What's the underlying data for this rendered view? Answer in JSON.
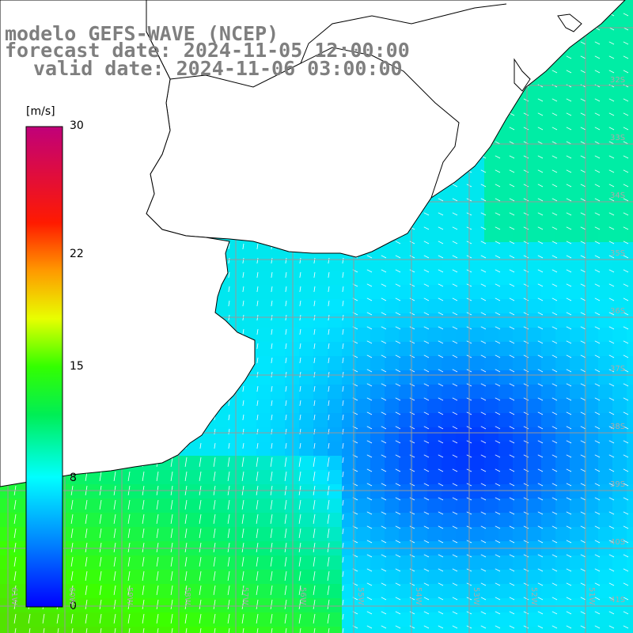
{
  "title": {
    "line1": "modelo GEFS-WAVE (NCEP)",
    "line2": "forecast date: 2024-11-05 12:00:00",
    "line3": "valid date: 2024-11-06 03:00:00"
  },
  "colorbar": {
    "unit": "[m/s]",
    "min": 0,
    "max": 30,
    "ticks": [
      {
        "label": "30",
        "value": 30
      },
      {
        "label": "22",
        "value": 22
      },
      {
        "label": "15",
        "value": 15
      },
      {
        "label": "8",
        "value": 8
      },
      {
        "label": "0",
        "value": 0
      }
    ],
    "colors": [
      "#0000ff",
      "#0080ff",
      "#00ffff",
      "#00ff00",
      "#ffff00",
      "#ff8000",
      "#ff0000",
      "#c0006a"
    ]
  },
  "map": {
    "latitude_labels": [
      "32S",
      "33S",
      "34S",
      "35S",
      "36S",
      "37S",
      "38S",
      "39S",
      "40S",
      "41S"
    ],
    "longitude_labels": [
      "61W",
      "60W",
      "59W",
      "58W",
      "57W",
      "56W",
      "55W",
      "54W",
      "53W",
      "52W",
      "51W"
    ],
    "land_color": "#ffffff",
    "grid_color": "#999999"
  }
}
